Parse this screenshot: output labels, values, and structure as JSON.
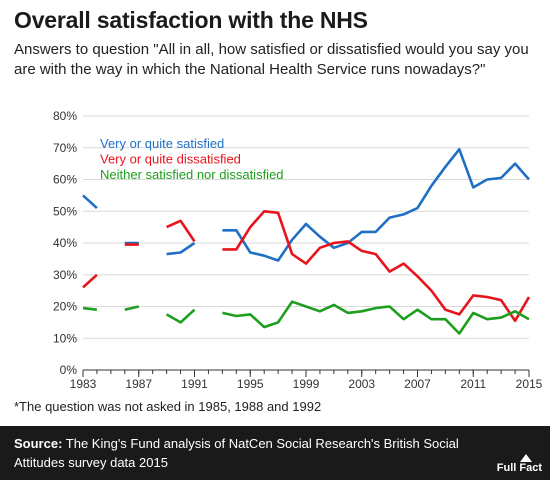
{
  "header": {
    "title": "Overall satisfaction with the NHS",
    "subtitle": "Answers to question \"All in all, how satisfied or dissatisfied would you say you are with the way in which the National Health Service runs nowadays?\""
  },
  "footnote": "*The question was not asked in 1985, 1988 and 1992",
  "footer": {
    "source_label": "Source:",
    "source_text": "The King's Fund analysis of NatCen Social Research's British Social Attitudes survey data 2015",
    "logo_text": "Full Fact"
  },
  "colors": {
    "satisfied": "#1f6fc5",
    "dissatisfied": "#e8141b",
    "neither": "#1e9e1e",
    "grid": "#d9d9d9",
    "axis": "#333333"
  },
  "chart_data": {
    "type": "line",
    "x": [
      1983,
      1984,
      1985,
      1986,
      1987,
      1988,
      1989,
      1990,
      1991,
      1992,
      1993,
      1994,
      1995,
      1996,
      1997,
      1998,
      1999,
      2000,
      2001,
      2002,
      2003,
      2004,
      2005,
      2006,
      2007,
      2008,
      2009,
      2010,
      2011,
      2012,
      2013,
      2014,
      2015
    ],
    "xlim": [
      1983,
      2015
    ],
    "ylim": [
      0,
      80
    ],
    "x_ticks": [
      1983,
      1987,
      1991,
      1995,
      1999,
      2003,
      2007,
      2011,
      2015
    ],
    "y_ticks": [
      "0%",
      "10%",
      "20%",
      "30%",
      "40%",
      "50%",
      "60%",
      "70%",
      "80%"
    ],
    "y_tick_values": [
      0,
      10,
      20,
      30,
      40,
      50,
      60,
      70,
      80
    ],
    "legend_position": "top-left",
    "series": [
      {
        "name": "Very or quite satisfied",
        "color": "#1f6fc5",
        "values": [
          55,
          51,
          null,
          40,
          40,
          null,
          36.5,
          37,
          40,
          null,
          44,
          44,
          37,
          36,
          34.5,
          41,
          46,
          42,
          38.5,
          40,
          43.5,
          43.5,
          48,
          49,
          51,
          58,
          64,
          69.5,
          57.5,
          60,
          60.5,
          65,
          60
        ]
      },
      {
        "name": "Very or quite dissatisfied",
        "color": "#e8141b",
        "values": [
          26,
          30,
          null,
          39.5,
          39.5,
          null,
          45,
          47,
          40.5,
          null,
          38,
          38,
          45,
          50,
          49.5,
          36.5,
          33.5,
          38.5,
          40,
          40.5,
          37.5,
          36.5,
          31,
          33.5,
          29.5,
          25,
          19,
          17.5,
          23.5,
          23,
          22,
          15.5,
          23
        ]
      },
      {
        "name": "Neither satisfied nor dissatisfied",
        "color": "#1e9e1e",
        "values": [
          19.5,
          19,
          null,
          19,
          20,
          null,
          17.5,
          15,
          19,
          null,
          18,
          17,
          17.5,
          13.5,
          15,
          21.5,
          20,
          18.5,
          20.5,
          18,
          18.5,
          19.5,
          20,
          16,
          19,
          16,
          16,
          11.5,
          18,
          16,
          16.5,
          18.5,
          16
        ]
      }
    ]
  }
}
